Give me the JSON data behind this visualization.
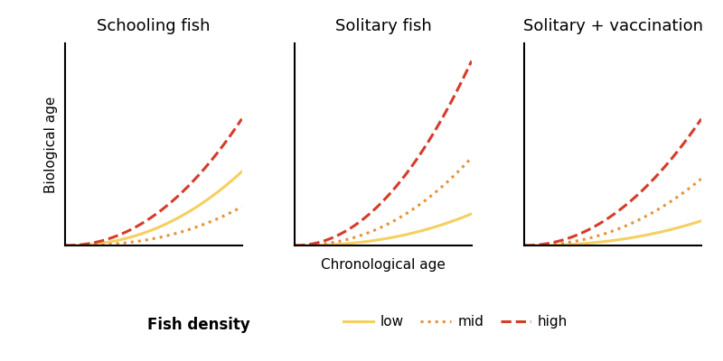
{
  "titles": [
    "Schooling fish",
    "Solitary fish",
    "Solitary + vaccination"
  ],
  "xlabel": "Chronological age",
  "ylabel": "Biological age",
  "legend_title": "Fish density",
  "legend_labels": [
    "low",
    "mid",
    "high"
  ],
  "colors": {
    "low": "#f5d060",
    "mid": "#e8923a",
    "high": "#d63c2a"
  },
  "linestyles": {
    "low": "solid",
    "mid": "dotted",
    "high": "dashed"
  },
  "background_color": "#ffffff",
  "title_fontsize": 13,
  "label_fontsize": 11,
  "legend_title_fontsize": 12,
  "legend_fontsize": 11,
  "linewidth": 2.2,
  "panels_curves": [
    [
      [
        0.42,
        2.2
      ],
      [
        0.22,
        2.5
      ],
      [
        0.72,
        2.1
      ]
    ],
    [
      [
        0.18,
        2.3
      ],
      [
        0.5,
        2.2
      ],
      [
        1.05,
        2.05
      ]
    ],
    [
      [
        0.14,
        2.3
      ],
      [
        0.38,
        2.2
      ],
      [
        0.72,
        2.05
      ]
    ]
  ]
}
